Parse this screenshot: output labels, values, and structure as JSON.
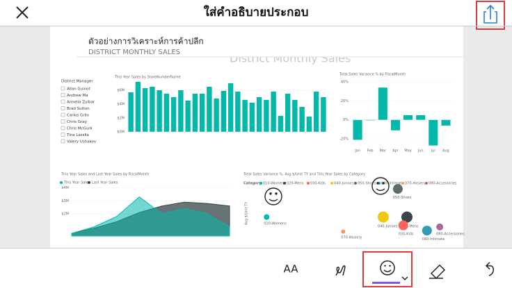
{
  "header": {
    "title": "ใส่คำอธิบายประกอบ"
  },
  "report": {
    "title": "ตัวอย่างการวิเคราะห์การค้าปลีก",
    "subtitle": "DISTRICT MONTHLY SALES",
    "watermark": "District Monthly Sales",
    "filter": {
      "title": "District Manager",
      "items": [
        "Allan Guinot",
        "Andrew Ma",
        "Annelia Zulbar",
        "Brad Sutton",
        "Carlos Grilo",
        "Chris Gray",
        "Chris McGurk",
        "Tina Lassila",
        "Valery Ushakov"
      ]
    }
  },
  "toolbar": {
    "text_tool": "AA"
  },
  "chart_data": [
    {
      "type": "bar",
      "title": "This Year Sales by StoreNumberName",
      "color": "#01b8aa",
      "categories": [
        null,
        null,
        null,
        null,
        null,
        null,
        null,
        null,
        null,
        null,
        null,
        null,
        null,
        null,
        null,
        null,
        null,
        null,
        null,
        null,
        null,
        null,
        null,
        null,
        null,
        null,
        null,
        null
      ],
      "values": [
        5.7,
        7.2,
        6.3,
        6.5,
        6.0,
        5.5,
        5.0,
        6.0,
        4.5,
        5.5,
        5.5,
        6.5,
        4.8,
        5.9,
        7.0,
        5.8,
        4.6,
        4.2,
        5.0,
        4.6,
        5.8,
        2.3,
        5.5,
        4.6,
        3.6,
        2.2,
        5.8,
        5.0
      ],
      "ylim": [
        0,
        7.2
      ],
      "yticks": [
        {
          "value": 0,
          "label": "$0M"
        },
        {
          "value": 2,
          "label": "$2M"
        },
        {
          "value": 4,
          "label": "$4M"
        },
        {
          "value": 6,
          "label": "$6M"
        }
      ]
    },
    {
      "type": "bar",
      "title": "Total Sales Variance % by FiscalMonth",
      "color": "#01b8aa",
      "categories": [
        "Jan",
        "Feb",
        "Mar",
        "Apr",
        "May",
        "Jun",
        "Jul",
        "Aug"
      ],
      "values": [
        -21,
        -0.5,
        34,
        -11,
        5,
        5,
        -27,
        -6
      ],
      "ylim": [
        -28,
        40
      ],
      "yticks": [
        {
          "value": 40,
          "label": "40%"
        },
        {
          "value": 20,
          "label": "20%"
        },
        {
          "value": 0,
          "label": "0%"
        },
        {
          "value": -20,
          "label": "-20%"
        }
      ]
    },
    {
      "type": "area",
      "title": "This Year Sales and Last Year Sales by FiscalMonth",
      "categories": [
        null,
        null,
        null,
        null,
        null,
        null,
        null,
        null
      ],
      "series": [
        {
          "name": "Last Year Sales",
          "color": "#374649",
          "values": [
            0.5,
            0.9,
            1.4,
            2.1,
            2.6,
            2.9,
            2.8,
            2.6
          ]
        },
        {
          "name": "This Year Sales",
          "color": "#01b8aa",
          "values": [
            0.5,
            1.0,
            1.8,
            3.3,
            2.0,
            2.4,
            2.0,
            1.0
          ]
        }
      ],
      "ylim": [
        0.3,
        4.3
      ],
      "yticks": [
        {
          "value": 4,
          "label": "$4M"
        },
        {
          "value": 3,
          "label": "$3M"
        },
        {
          "value": 2,
          "label": "$2M"
        }
      ]
    },
    {
      "type": "scatter",
      "title": "Total Sales Variance %, Avg $/Unit TY and This Year Sales by Category",
      "legend_title": "Category",
      "y_label": "Avg $/Unit TY",
      "xlim": [
        0,
        100
      ],
      "ylim": [
        0,
        100
      ],
      "series": [
        {
          "name": "010-Womens",
          "color": "#01b8aa",
          "x": [
            2
          ],
          "y": [
            43
          ],
          "size": [
            4
          ]
        },
        {
          "name": "020-Mens",
          "color": "#374649",
          "x": [
            79
          ],
          "y": [
            43
          ],
          "size": [
            8
          ]
        },
        {
          "name": "030-Kids",
          "color": "#fd625e",
          "x": [
            77
          ],
          "y": [
            27
          ],
          "size": [
            7
          ]
        },
        {
          "name": "040-Juniors",
          "color": "#f2c80f",
          "x": [
            66
          ],
          "y": [
            43
          ],
          "size": [
            8
          ]
        },
        {
          "name": "050-Shoes",
          "color": "#5f6b6d",
          "x": [
            74
          ],
          "y": [
            97
          ],
          "size": [
            7
          ]
        },
        {
          "name": "060-Intimate",
          "color": "#3599b8",
          "x": [
            90
          ],
          "y": [
            17
          ],
          "size": [
            7
          ]
        },
        {
          "name": "070-Hosiery",
          "color": "#fe9666",
          "x": [
            44
          ],
          "y": [
            15
          ],
          "size": [
            3
          ]
        },
        {
          "name": "080-Accessories",
          "color": "#a66999",
          "x": [
            97
          ],
          "y": [
            24
          ],
          "size": [
            5
          ]
        }
      ]
    }
  ]
}
